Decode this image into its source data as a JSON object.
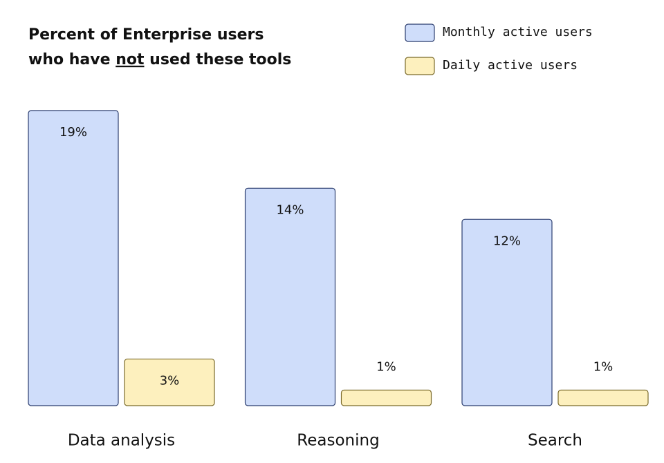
{
  "chart_data": {
    "type": "bar",
    "title": [
      "Percent of Enterprise users",
      "who have not used these tools"
    ],
    "title_underline": "not",
    "categories": [
      "Data analysis",
      "Reasoning",
      "Search"
    ],
    "series": [
      {
        "name": "Monthly active users",
        "color": "#cfddfa",
        "values": [
          19,
          14,
          12
        ],
        "value_labels": [
          "19%",
          "14%",
          "12%"
        ]
      },
      {
        "name": "Daily active users",
        "color": "#fdf0be",
        "values": [
          3,
          1,
          1
        ],
        "value_labels": [
          "3%",
          "1%",
          "1%"
        ]
      }
    ],
    "legend": "top-right"
  }
}
